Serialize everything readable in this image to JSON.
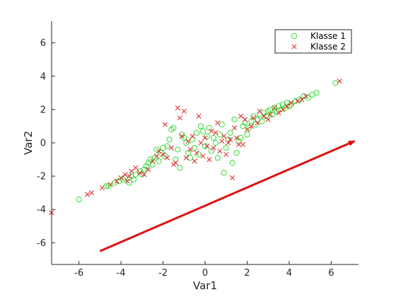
{
  "chart_data": {
    "type": "scatter",
    "title": "",
    "xlabel": "Var1",
    "ylabel": "Var2",
    "xlim": [
      -7.3,
      7.3
    ],
    "ylim": [
      -7.3,
      7.3
    ],
    "xticks": [
      -6,
      -4,
      -2,
      0,
      2,
      4,
      6
    ],
    "yticks": [
      -6,
      -4,
      -2,
      0,
      2,
      4,
      6
    ],
    "grid": false,
    "legend_position": "top-right",
    "series": [
      {
        "name": "Klasse 1",
        "marker": "circle",
        "color": "#33dd33",
        "points": [
          [
            -6.0,
            -3.4
          ],
          [
            -4.7,
            -2.6
          ],
          [
            -4.6,
            -2.6
          ],
          [
            -4.3,
            -2.4
          ],
          [
            -4.1,
            -2.3
          ],
          [
            -3.9,
            -2.2
          ],
          [
            -3.8,
            -2.1
          ],
          [
            -3.6,
            -2.4
          ],
          [
            -3.5,
            -2.0
          ],
          [
            -3.4,
            -2.2
          ],
          [
            -3.3,
            -1.9
          ],
          [
            -3.1,
            -1.7
          ],
          [
            -3.0,
            -1.9
          ],
          [
            -2.9,
            -1.6
          ],
          [
            -2.8,
            -1.4
          ],
          [
            -2.7,
            -1.2
          ],
          [
            -2.6,
            -1.0
          ],
          [
            -2.5,
            -1.3
          ],
          [
            -2.4,
            -0.9
          ],
          [
            -2.3,
            -0.4
          ],
          [
            -2.2,
            -1.1
          ],
          [
            -2.1,
            -0.6
          ],
          [
            -2.0,
            -0.3
          ],
          [
            -1.9,
            -0.8
          ],
          [
            -1.8,
            -0.2
          ],
          [
            -1.7,
            0.2
          ],
          [
            -1.6,
            0.8
          ],
          [
            -1.5,
            0.9
          ],
          [
            -1.4,
            -1.0
          ],
          [
            -1.3,
            -0.4
          ],
          [
            -1.2,
            -1.5
          ],
          [
            -1.1,
            0.5
          ],
          [
            -1.0,
            0.3
          ],
          [
            -0.9,
            0.0
          ],
          [
            -0.8,
            -0.6
          ],
          [
            -0.7,
            -0.9
          ],
          [
            -0.6,
            0.2
          ],
          [
            -0.5,
            -0.3
          ],
          [
            -0.4,
            0.6
          ],
          [
            -0.3,
            -0.7
          ],
          [
            -0.2,
            1.0
          ],
          [
            -0.1,
            0.7
          ],
          [
            0.0,
            -0.2
          ],
          [
            0.1,
            0.4
          ],
          [
            0.2,
            0.9
          ],
          [
            0.3,
            -0.5
          ],
          [
            0.4,
            0.3
          ],
          [
            0.5,
            0.0
          ],
          [
            0.6,
            -0.9
          ],
          [
            0.7,
            0.5
          ],
          [
            0.8,
            1.1
          ],
          [
            0.9,
            -1.8
          ],
          [
            1.0,
            -0.3
          ],
          [
            1.1,
            0.2
          ],
          [
            1.2,
            0.6
          ],
          [
            1.3,
            -1.2
          ],
          [
            1.4,
            1.4
          ],
          [
            1.5,
            -0.6
          ],
          [
            1.6,
            0.1
          ],
          [
            1.7,
            0.3
          ],
          [
            1.8,
            1.0
          ],
          [
            1.9,
            1.2
          ],
          [
            2.0,
            0.5
          ],
          [
            2.1,
            0.9
          ],
          [
            2.2,
            1.3
          ],
          [
            2.3,
            1.6
          ],
          [
            2.4,
            1.1
          ],
          [
            2.5,
            1.4
          ],
          [
            2.6,
            1.7
          ],
          [
            2.7,
            1.3
          ],
          [
            2.8,
            1.8
          ],
          [
            2.9,
            1.6
          ],
          [
            3.0,
            1.9
          ],
          [
            3.1,
            2.0
          ],
          [
            3.2,
            1.7
          ],
          [
            3.3,
            2.1
          ],
          [
            3.4,
            1.9
          ],
          [
            3.5,
            2.2
          ],
          [
            3.6,
            2.0
          ],
          [
            3.7,
            2.3
          ],
          [
            3.8,
            2.1
          ],
          [
            3.9,
            2.4
          ],
          [
            4.0,
            2.2
          ],
          [
            4.1,
            2.3
          ],
          [
            4.3,
            2.5
          ],
          [
            4.5,
            2.6
          ],
          [
            4.7,
            2.8
          ],
          [
            4.9,
            2.7
          ],
          [
            5.1,
            2.9
          ],
          [
            5.3,
            3.0
          ],
          [
            6.2,
            3.6
          ]
        ]
      },
      {
        "name": "Klasse 2",
        "marker": "x",
        "color": "#dd2222",
        "points": [
          [
            -7.3,
            -4.2
          ],
          [
            -5.6,
            -3.1
          ],
          [
            -5.4,
            -3.0
          ],
          [
            -4.9,
            -2.7
          ],
          [
            -4.5,
            -2.5
          ],
          [
            -4.2,
            -2.3
          ],
          [
            -4.0,
            -2.1
          ],
          [
            -3.8,
            -1.9
          ],
          [
            -3.7,
            -2.3
          ],
          [
            -3.6,
            -2.0
          ],
          [
            -3.5,
            -1.7
          ],
          [
            -3.3,
            -1.5
          ],
          [
            -3.1,
            -1.8
          ],
          [
            -2.9,
            -1.9
          ],
          [
            -2.7,
            -1.6
          ],
          [
            -2.5,
            -1.1
          ],
          [
            -2.3,
            -0.8
          ],
          [
            -2.2,
            -0.5
          ],
          [
            -2.0,
            -0.7
          ],
          [
            -1.9,
            1.1
          ],
          [
            -1.8,
            -0.9
          ],
          [
            -1.6,
            -0.3
          ],
          [
            -1.5,
            -1.3
          ],
          [
            -1.4,
            -1.2
          ],
          [
            -1.3,
            2.1
          ],
          [
            -1.2,
            1.5
          ],
          [
            -1.1,
            0.4
          ],
          [
            -1.0,
            1.9
          ],
          [
            -0.9,
            -0.9
          ],
          [
            -0.8,
            0.1
          ],
          [
            -0.7,
            -0.4
          ],
          [
            -0.6,
            0.4
          ],
          [
            -0.5,
            -1.1
          ],
          [
            -0.4,
            -0.6
          ],
          [
            -0.3,
            1.6
          ],
          [
            -0.2,
            0.0
          ],
          [
            -0.1,
            -0.8
          ],
          [
            0.0,
            0.3
          ],
          [
            0.1,
            -0.2
          ],
          [
            0.2,
            -1.0
          ],
          [
            0.3,
            0.7
          ],
          [
            0.4,
            -0.3
          ],
          [
            0.5,
            0.6
          ],
          [
            0.6,
            1.2
          ],
          [
            0.7,
            -0.5
          ],
          [
            0.8,
            0.1
          ],
          [
            0.9,
            0.4
          ],
          [
            1.0,
            -0.7
          ],
          [
            1.1,
            0.0
          ],
          [
            1.2,
            0.2
          ],
          [
            1.3,
            -2.1
          ],
          [
            1.4,
            0.9
          ],
          [
            1.5,
            0.3
          ],
          [
            1.6,
            -0.1
          ],
          [
            1.7,
            1.6
          ],
          [
            1.8,
            -0.1
          ],
          [
            1.9,
            1.4
          ],
          [
            2.0,
            0.8
          ],
          [
            2.2,
            1.0
          ],
          [
            2.3,
            1.5
          ],
          [
            2.5,
            1.2
          ],
          [
            2.6,
            1.9
          ],
          [
            2.8,
            1.6
          ],
          [
            3.0,
            1.4
          ],
          [
            3.1,
            1.7
          ],
          [
            3.3,
            2.1
          ],
          [
            3.5,
            1.8
          ],
          [
            3.7,
            2.0
          ],
          [
            3.9,
            2.2
          ],
          [
            4.1,
            2.4
          ],
          [
            4.4,
            2.5
          ],
          [
            4.6,
            2.6
          ],
          [
            4.8,
            2.8
          ],
          [
            6.4,
            3.7
          ]
        ]
      }
    ],
    "annotations": [
      {
        "type": "arrow",
        "color": "#e01010",
        "from": [
          -5.0,
          -6.5
        ],
        "to": [
          7.1,
          0.1
        ]
      }
    ]
  }
}
